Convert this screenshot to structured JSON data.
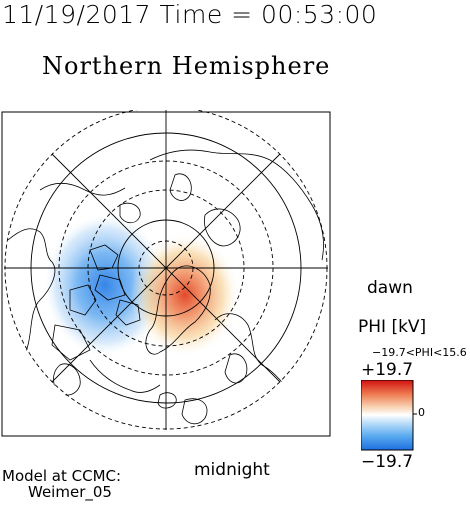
{
  "header": {
    "timestamp": "11/19/2017 Time = 00:53:00",
    "hemisphere_title": "Northern Hemisphere"
  },
  "map": {
    "labels": {
      "dawn": "dawn",
      "midnight": "midnight"
    },
    "potential_pattern": {
      "negative_cell": "dusk/Canada side (blue)",
      "positive_cell": "near pole toward midnight (red)"
    }
  },
  "colorbar": {
    "title": "PHI [kV]",
    "range_text": "−19.7<PHI<15.6",
    "max_label": "+19.7",
    "zero_label": "0",
    "min_label": "−19.7",
    "colors": {
      "max": "#d01010",
      "mid": "#ffffff",
      "min": "#1e6fe0"
    }
  },
  "footer": {
    "model_line1": "Model at CCMC:",
    "model_line2": "Weimer_05"
  }
}
